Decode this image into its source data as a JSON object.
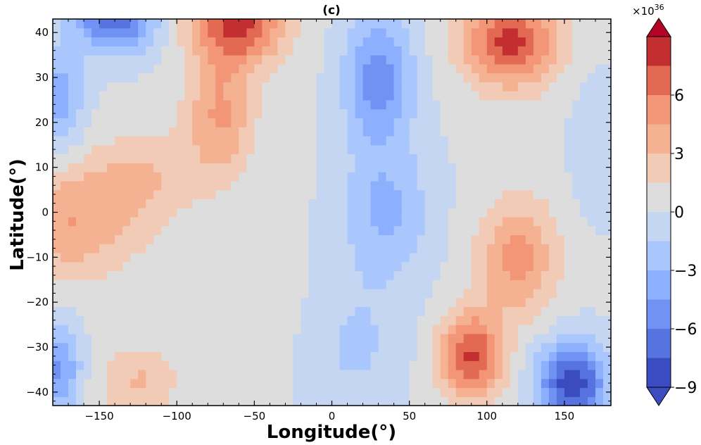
{
  "chart_data": {
    "type": "heatmap",
    "title": "(c)",
    "xlabel": "Longitude(°)",
    "ylabel": "Latitude(°)",
    "xlim": [
      -180,
      180
    ],
    "ylim": [
      -43,
      43
    ],
    "x_ticks": [
      -150,
      -100,
      -50,
      0,
      50,
      100,
      150
    ],
    "x_tick_labels": [
      "−150",
      "−100",
      "−50",
      "0",
      "50",
      "100",
      "150"
    ],
    "y_ticks": [
      40,
      30,
      20,
      10,
      0,
      -10,
      -20,
      -30,
      -40
    ],
    "y_tick_labels": [
      "40",
      "30",
      "20",
      "10",
      "0",
      "−10",
      "−20",
      "−30",
      "−40"
    ],
    "colorbar": {
      "multiplier_label": "×10",
      "multiplier_exponent": "36",
      "range": [
        -9,
        9
      ],
      "ticks": [
        6,
        3,
        0,
        -3,
        -6,
        -9
      ],
      "tick_labels": [
        "6",
        "3",
        "0",
        "−3",
        "−6",
        "−9"
      ],
      "extend": "both",
      "levels": [
        -9,
        -7.5,
        -6,
        -4.5,
        -3,
        -1.5,
        0,
        1.5,
        3,
        4.5,
        6,
        7.5
      ],
      "colors": [
        "#3b4cc0",
        "#5673e0",
        "#7093f3",
        "#8db0fe",
        "#aac7fd",
        "#c5d6f2",
        "#dddddd",
        "#f2cbb7",
        "#f5b293",
        "#f39577",
        "#e26952",
        "#c32e31"
      ],
      "over_color": "#b40426",
      "under_color": "#3b4cc0"
    },
    "field": {
      "base": 0.2,
      "bumps": [
        {
          "lon": -60,
          "lat": 42,
          "slon": 30,
          "slat": 9,
          "amp": 7.5
        },
        {
          "lon": -72,
          "lat": 22,
          "slon": 22,
          "slat": 14,
          "amp": 4.5
        },
        {
          "lon": -170,
          "lat": -2,
          "slon": 45,
          "slat": 13,
          "amp": 4.2
        },
        {
          "lon": -120,
          "lat": 8,
          "slon": 35,
          "slat": 10,
          "amp": 2.5
        },
        {
          "lon": -140,
          "lat": 44,
          "slon": 25,
          "slat": 8,
          "amp": -8
        },
        {
          "lon": -175,
          "lat": 25,
          "slon": 15,
          "slat": 12,
          "amp": -4
        },
        {
          "lon": 30,
          "lat": 30,
          "slon": 22,
          "slat": 15,
          "amp": -5.5
        },
        {
          "lon": 35,
          "lat": 0,
          "slon": 28,
          "slat": 15,
          "amp": -3.5
        },
        {
          "lon": 15,
          "lat": -30,
          "slon": 30,
          "slat": 15,
          "amp": -2
        },
        {
          "lon": 115,
          "lat": 38,
          "slon": 30,
          "slat": 10,
          "amp": 8
        },
        {
          "lon": 90,
          "lat": -32,
          "slon": 20,
          "slat": 10,
          "amp": 7.5
        },
        {
          "lon": 120,
          "lat": -10,
          "slon": 25,
          "slat": 13,
          "amp": 5
        },
        {
          "lon": 155,
          "lat": -38,
          "slon": 22,
          "slat": 9,
          "amp": -9
        },
        {
          "lon": -175,
          "lat": -35,
          "slon": 13,
          "slat": 10,
          "amp": -5
        },
        {
          "lon": -125,
          "lat": -38,
          "slon": 25,
          "slat": 8,
          "amp": 3
        },
        {
          "lon": -60,
          "lat": -22,
          "slon": 35,
          "slat": 12,
          "amp": 0.8
        },
        {
          "lon": 170,
          "lat": 15,
          "slon": 15,
          "slat": 15,
          "amp": -1.5
        }
      ]
    }
  }
}
